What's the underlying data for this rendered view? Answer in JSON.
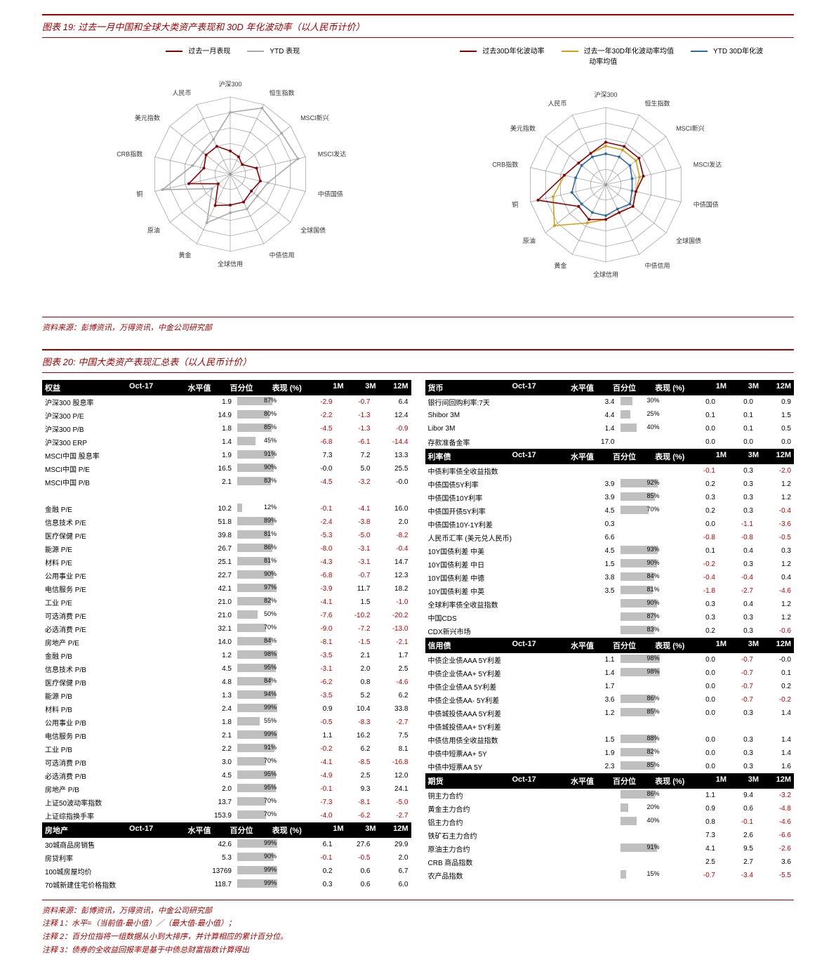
{
  "chart19": {
    "title": "图表 19:  过去一月中国和全球大类资产表现和 30D 年化波动率（以人民币计价）",
    "radar_left": {
      "legend": [
        {
          "label": "过去一月表现",
          "color": "#8b0000"
        },
        {
          "label": "YTD 表现",
          "color": "#a9a9a9"
        }
      ],
      "axes": [
        "沪深300",
        "恒生指数",
        "MSCI新兴",
        "MSCI发达",
        "中债国债",
        "全球国债",
        "中债信用",
        "全球信用",
        "黄金",
        "原油",
        "铜",
        "CRB指数",
        "美元指数",
        "人民币"
      ],
      "rings": 5,
      "series": [
        {
          "color": "#8b0000",
          "values": [
            0.3,
            0.25,
            0.2,
            0.35,
            0.4,
            0.35,
            0.4,
            0.4,
            0.45,
            0.2,
            0.55,
            0.35,
            0.4,
            0.4
          ]
        },
        {
          "color": "#a9a9a9",
          "values": [
            0.8,
            0.95,
            0.85,
            0.9,
            0.5,
            0.45,
            0.5,
            0.5,
            0.7,
            0.3,
            0.9,
            0.5,
            0.45,
            0.5
          ]
        }
      ]
    },
    "radar_right": {
      "legend": [
        {
          "label": "过去30D年化波动率",
          "color": "#8b0000"
        },
        {
          "label": "过去一年30D年化波动率均值",
          "color": "#d4a017"
        },
        {
          "label": "YTD 30D年化波动率均值",
          "color": "#2e6ca4"
        }
      ],
      "axes": [
        "沪深300",
        "恒生指数",
        "MSCI新兴",
        "MSCI发达",
        "中债国债",
        "全球国债",
        "中债信用",
        "全球信用",
        "黄金",
        "原油",
        "铜",
        "CRB指数",
        "美元指数",
        "人民币"
      ],
      "rings": 5,
      "series": [
        {
          "color": "#2e6ca4",
          "values": [
            0.4,
            0.4,
            0.4,
            0.35,
            0.35,
            0.4,
            0.35,
            0.4,
            0.4,
            0.4,
            0.45,
            0.4,
            0.4,
            0.4
          ]
        },
        {
          "color": "#d4a017",
          "values": [
            0.5,
            0.5,
            0.5,
            0.45,
            0.4,
            0.45,
            0.4,
            0.45,
            0.55,
            0.85,
            0.7,
            0.55,
            0.45,
            0.45
          ]
        },
        {
          "color": "#8b0000",
          "values": [
            0.55,
            0.55,
            0.55,
            0.5,
            0.4,
            0.45,
            0.4,
            0.45,
            0.5,
            0.45,
            0.9,
            0.55,
            0.45,
            0.45
          ]
        }
      ]
    },
    "source": "资料来源：彭博资讯，万得资讯，中金公司研究部"
  },
  "chart20": {
    "title": "图表 20:  中国大类资产表现汇总表（以人民币计价）",
    "columns": {
      "name": "",
      "date": "Oct-17",
      "level": "水平值",
      "pct": "百分位",
      "perf": "表现 (%)",
      "m1": "1M",
      "m3": "3M",
      "m12": "12M"
    },
    "sections_left": [
      {
        "head": "权益",
        "date": "Oct-17",
        "rows": [
          {
            "name": "沪深300 股息率",
            "lvl": "1.9",
            "pct": 87,
            "v": [
              "-2.9",
              "-0.7",
              "6.4"
            ]
          },
          {
            "name": "沪深300 P/E",
            "lvl": "14.9",
            "pct": 80,
            "v": [
              "-2.2",
              "-1.3",
              "12.4"
            ]
          },
          {
            "name": "沪深300 P/B",
            "lvl": "1.8",
            "pct": 85,
            "v": [
              "-4.5",
              "-1.3",
              "-0.9"
            ]
          },
          {
            "name": "沪深300 ERP",
            "lvl": "1.4",
            "pct": 45,
            "v": [
              "-6.8",
              "-6.1",
              "-14.4"
            ]
          },
          {
            "name": "MSCI中国 股息率",
            "lvl": "1.9",
            "pct": 91,
            "v": [
              "7.3",
              "7.2",
              "13.3"
            ]
          },
          {
            "name": "MSCI中国 P/E",
            "lvl": "16.5",
            "pct": 90,
            "v": [
              "-0.0",
              "5.0",
              "25.5"
            ]
          },
          {
            "name": "MSCI中国 P/B",
            "lvl": "2.1",
            "pct": 83,
            "v": [
              "-4.5",
              "-3.2",
              "-0.0"
            ]
          },
          {
            "name": "",
            "lvl": "",
            "pct": null,
            "v": [
              "",
              "",
              ""
            ]
          },
          {
            "name": "金融 P/E",
            "lvl": "10.2",
            "pct": 12,
            "v": [
              "-0.1",
              "-4.1",
              "16.0"
            ]
          },
          {
            "name": "信息技术 P/E",
            "lvl": "51.8",
            "pct": 89,
            "v": [
              "-2.4",
              "-3.8",
              "2.0"
            ]
          },
          {
            "name": "医疗保健 P/E",
            "lvl": "39.8",
            "pct": 81,
            "v": [
              "-5.3",
              "-5.0",
              "-8.2"
            ]
          },
          {
            "name": "能源 P/E",
            "lvl": "26.7",
            "pct": 86,
            "v": [
              "-8.0",
              "-3.1",
              "-0.4"
            ]
          },
          {
            "name": "材料 P/E",
            "lvl": "25.1",
            "pct": 81,
            "v": [
              "-4.3",
              "-3.1",
              "14.7"
            ]
          },
          {
            "name": "公用事业 P/E",
            "lvl": "22.7",
            "pct": 90,
            "v": [
              "-6.8",
              "-0.7",
              "12.3"
            ]
          },
          {
            "name": "电信服务 P/E",
            "lvl": "42.1",
            "pct": 97,
            "v": [
              "-3.9",
              "11.7",
              "18.2"
            ]
          },
          {
            "name": "工业 P/E",
            "lvl": "21.0",
            "pct": 82,
            "v": [
              "-4.1",
              "1.5",
              "-1.0"
            ]
          },
          {
            "name": "可选消费 P/E",
            "lvl": "21.0",
            "pct": 50,
            "v": [
              "-7.6",
              "-10.2",
              "-20.2"
            ]
          },
          {
            "name": "必选消费 P/E",
            "lvl": "32.1",
            "pct": 70,
            "v": [
              "-9.0",
              "-7.2",
              "-13.0"
            ]
          },
          {
            "name": "房地产 P/E",
            "lvl": "14.0",
            "pct": 84,
            "v": [
              "-8.1",
              "-1.5",
              "-2.1"
            ]
          },
          {
            "name": "金融 P/B",
            "lvl": "1.2",
            "pct": 98,
            "v": [
              "-3.5",
              "2.1",
              "1.7"
            ]
          },
          {
            "name": "信息技术 P/B",
            "lvl": "4.5",
            "pct": 95,
            "v": [
              "-3.1",
              "2.0",
              "2.5"
            ]
          },
          {
            "name": "医疗保健 P/B",
            "lvl": "4.8",
            "pct": 84,
            "v": [
              "-6.2",
              "0.8",
              "-4.6"
            ]
          },
          {
            "name": "能源 P/B",
            "lvl": "1.3",
            "pct": 94,
            "v": [
              "-3.5",
              "5.2",
              "6.2"
            ]
          },
          {
            "name": "材料 P/B",
            "lvl": "2.4",
            "pct": 99,
            "v": [
              "0.9",
              "10.4",
              "33.8"
            ]
          },
          {
            "name": "公用事业 P/B",
            "lvl": "1.8",
            "pct": 55,
            "v": [
              "-0.5",
              "-8.3",
              "-2.7"
            ]
          },
          {
            "name": "电信服务 P/B",
            "lvl": "2.1",
            "pct": 99,
            "v": [
              "1.1",
              "16.2",
              "7.5"
            ]
          },
          {
            "name": "工业 P/B",
            "lvl": "2.2",
            "pct": 91,
            "v": [
              "-0.2",
              "6.2",
              "8.1"
            ]
          },
          {
            "name": "可选消费 P/B",
            "lvl": "3.0",
            "pct": 70,
            "v": [
              "-4.1",
              "-8.5",
              "-16.8"
            ]
          },
          {
            "name": "必选消费 P/B",
            "lvl": "4.5",
            "pct": 95,
            "v": [
              "-4.9",
              "2.5",
              "12.0"
            ]
          },
          {
            "name": "房地产 P/B",
            "lvl": "2.0",
            "pct": 95,
            "v": [
              "-0.1",
              "9.3",
              "24.1"
            ]
          },
          {
            "name": "上证50波动率指数",
            "lvl": "13.7",
            "pct": 70,
            "v": [
              "-7.3",
              "-8.1",
              "-5.0"
            ]
          },
          {
            "name": "上证综指换手率",
            "lvl": "153.9",
            "pct": 70,
            "v": [
              "-4.0",
              "-6.2",
              "-2.7"
            ]
          }
        ]
      },
      {
        "head": "房地产",
        "date": "Oct-17",
        "rows": [
          {
            "name": "30城商品房销售",
            "lvl": "42.6",
            "pct": 99,
            "v": [
              "6.1",
              "27.6",
              "29.9"
            ]
          },
          {
            "name": "房贷利率",
            "lvl": "5.3",
            "pct": 90,
            "v": [
              "-0.1",
              "-0.5",
              "2.0"
            ]
          },
          {
            "name": "100城房屋均价",
            "lvl": "13769",
            "pct": 99,
            "v": [
              "0.2",
              "0.6",
              "6.7"
            ]
          },
          {
            "name": "70城新建住宅价格指数",
            "lvl": "118.7",
            "pct": 99,
            "v": [
              "0.3",
              "0.6",
              "6.0"
            ]
          }
        ]
      }
    ],
    "sections_right": [
      {
        "head": "货币",
        "date": "Oct-17",
        "rows": [
          {
            "name": "银行间回购利率:7天",
            "lvl": "3.4",
            "pct": 30,
            "v": [
              "0.0",
              "0.0",
              "0.9"
            ]
          },
          {
            "name": "Shibor 3M",
            "lvl": "4.4",
            "pct": 25,
            "v": [
              "0.1",
              "0.1",
              "1.5"
            ]
          },
          {
            "name": "Libor 3M",
            "lvl": "1.4",
            "pct": 40,
            "v": [
              "0.0",
              "0.1",
              "0.5"
            ]
          },
          {
            "name": "存款准备金率",
            "lvl": "17.0",
            "pct": null,
            "v": [
              "0.0",
              "0.0",
              "0.0"
            ]
          }
        ]
      },
      {
        "head": "利率债",
        "date": "Oct-17",
        "rows": [
          {
            "name": "中债利率债全收益指数",
            "lvl": "",
            "pct": null,
            "v": [
              "-0.1",
              "0.3",
              "-2.0"
            ]
          },
          {
            "name": "中债国债5Y利率",
            "lvl": "3.9",
            "pct": 92,
            "v": [
              "0.2",
              "0.3",
              "1.2"
            ]
          },
          {
            "name": "中债国债10Y利率",
            "lvl": "3.9",
            "pct": 85,
            "v": [
              "0.3",
              "0.3",
              "1.2"
            ]
          },
          {
            "name": "中债国开债5Y利率",
            "lvl": "4.5",
            "pct": 70,
            "v": [
              "0.2",
              "0.3",
              "-0.4"
            ]
          },
          {
            "name": "中债国债10Y-1Y利差",
            "lvl": "0.3",
            "pct": null,
            "v": [
              "0.0",
              "-1.1",
              "-3.6"
            ]
          },
          {
            "name": "人民币汇率 (美元兑人民币)",
            "lvl": "6.6",
            "pct": null,
            "v": [
              "-0.8",
              "-0.8",
              "-0.5"
            ]
          },
          {
            "name": "10Y国债利差 中美",
            "lvl": "4.5",
            "pct": 93,
            "v": [
              "0.1",
              "0.4",
              "0.3"
            ]
          },
          {
            "name": "10Y国债利差 中日",
            "lvl": "1.5",
            "pct": 90,
            "v": [
              "-0.2",
              "0.3",
              "1.2"
            ]
          },
          {
            "name": "10Y国债利差 中德",
            "lvl": "3.8",
            "pct": 84,
            "v": [
              "-0.4",
              "-0.4",
              "0.4"
            ]
          },
          {
            "name": "10Y国债利差 中英",
            "lvl": "3.5",
            "pct": 81,
            "v": [
              "-1.8",
              "-2.7",
              "-4.6"
            ]
          },
          {
            "name": "全球利率债全收益指数",
            "lvl": "",
            "pct": 90,
            "v": [
              "0.3",
              "0.4",
              "1.2"
            ]
          },
          {
            "name": "中国CDS",
            "lvl": "",
            "pct": 87,
            "v": [
              "0.3",
              "0.3",
              "1.2"
            ]
          },
          {
            "name": "CDX新兴市场",
            "lvl": "",
            "pct": 83,
            "v": [
              "0.2",
              "0.3",
              "-0.6"
            ]
          }
        ]
      },
      {
        "head": "信用债",
        "date": "Oct-17",
        "rows": [
          {
            "name": "中债企业债AAA 5Y利差",
            "lvl": "1.1",
            "pct": 98,
            "v": [
              "0.0",
              "-0.7",
              "-0.0"
            ]
          },
          {
            "name": "中债企业债AA+ 5Y利差",
            "lvl": "1.4",
            "pct": 98,
            "v": [
              "0.0",
              "-0.7",
              "0.1"
            ]
          },
          {
            "name": "中债企业债AA  5Y利差",
            "lvl": "1.7",
            "pct": null,
            "v": [
              "0.0",
              "-0.7",
              "0.2"
            ]
          },
          {
            "name": "中债企业债AA- 5Y利差",
            "lvl": "3.6",
            "pct": 86,
            "v": [
              "0.0",
              "-0.7",
              "-0.2"
            ]
          },
          {
            "name": "中债城投债AAA 5Y利差",
            "lvl": "1.2",
            "pct": 85,
            "v": [
              "0.0",
              "0.3",
              "1.4"
            ]
          },
          {
            "name": "中债城投债AA+ 5Y利差",
            "lvl": "",
            "pct": null,
            "v": [
              "",
              "",
              ""
            ]
          },
          {
            "name": "中债信用债全收益指数",
            "lvl": "1.5",
            "pct": 88,
            "v": [
              "0.0",
              "0.3",
              "1.4"
            ]
          },
          {
            "name": "中债中短票AA+ 5Y",
            "lvl": "1.9",
            "pct": 82,
            "v": [
              "0.0",
              "0.3",
              "1.4"
            ]
          },
          {
            "name": "中债中短票AA  5Y",
            "lvl": "2.3",
            "pct": 85,
            "v": [
              "0.0",
              "0.3",
              "1.6"
            ]
          }
        ]
      },
      {
        "head": "期货",
        "date": "Oct-17",
        "rows": [
          {
            "name": "铜主力合约",
            "lvl": "",
            "pct": 86,
            "v": [
              "1.1",
              "9.4",
              "-3.2"
            ]
          },
          {
            "name": "黄金主力合约",
            "lvl": "",
            "pct": 20,
            "v": [
              "0.9",
              "0.6",
              "-4.8"
            ]
          },
          {
            "name": "铝主力合约",
            "lvl": "",
            "pct": 40,
            "v": [
              "0.8",
              "-0.1",
              "-4.6"
            ]
          },
          {
            "name": "铁矿石主力合约",
            "lvl": "",
            "pct": null,
            "v": [
              "7.3",
              "2.6",
              "-6.6"
            ]
          },
          {
            "name": "原油主力合约",
            "lvl": "",
            "pct": 91,
            "v": [
              "4.1",
              "9.5",
              "-2.6"
            ]
          },
          {
            "name": "CRB 商品指数",
            "lvl": "",
            "pct": null,
            "v": [
              "2.5",
              "2.7",
              "3.6"
            ]
          },
          {
            "name": "农产品指数",
            "lvl": "",
            "pct": 15,
            "v": [
              "-0.7",
              "-3.4",
              "-5.5"
            ]
          }
        ]
      }
    ],
    "source": [
      "资料来源：彭博资讯，万得资讯，中金公司研究部",
      "注释 1：水平=（当前值-最小值）／（最大值-最小值）；",
      "注释 2：百分位指将一组数据从小到大排序，并计算相应的累计百分位。",
      "注释 3：债券的全收益回报率是基于中债总财富指数计算得出"
    ]
  },
  "style": {
    "neg_color": "#c00000",
    "bar_color": "#bfbfbf",
    "header_bg": "#000000",
    "header_fg": "#ffffff",
    "accent": "#a00000"
  }
}
